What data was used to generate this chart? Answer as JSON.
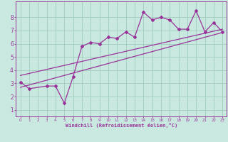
{
  "bg_color": "#c8e8e0",
  "grid_color": "#a0ccbc",
  "line_color": "#993399",
  "xlabel": "Windchill (Refroidissement éolien,°C)",
  "xlim": [
    -0.5,
    23.5
  ],
  "ylim": [
    0.5,
    9.2
  ],
  "yticks": [
    1,
    2,
    3,
    4,
    5,
    6,
    7,
    8
  ],
  "xticks": [
    0,
    1,
    2,
    3,
    4,
    5,
    6,
    7,
    8,
    9,
    10,
    11,
    12,
    13,
    14,
    15,
    16,
    17,
    18,
    19,
    20,
    21,
    22,
    23
  ],
  "data_x": [
    0,
    1,
    3,
    4,
    5,
    6,
    7,
    8,
    9,
    10,
    11,
    12,
    13,
    14,
    15,
    16,
    17,
    18,
    19,
    20,
    21,
    22,
    23
  ],
  "data_y": [
    3.1,
    2.6,
    2.8,
    2.8,
    1.5,
    3.5,
    5.8,
    6.1,
    6.0,
    6.5,
    6.4,
    6.9,
    6.5,
    8.4,
    7.8,
    8.0,
    7.8,
    7.1,
    7.1,
    8.5,
    6.9,
    7.6,
    6.9
  ],
  "trend1_x": [
    0,
    23
  ],
  "trend1_y": [
    2.7,
    6.85
  ],
  "trend2_x": [
    0,
    23
  ],
  "trend2_y": [
    3.6,
    7.1
  ]
}
